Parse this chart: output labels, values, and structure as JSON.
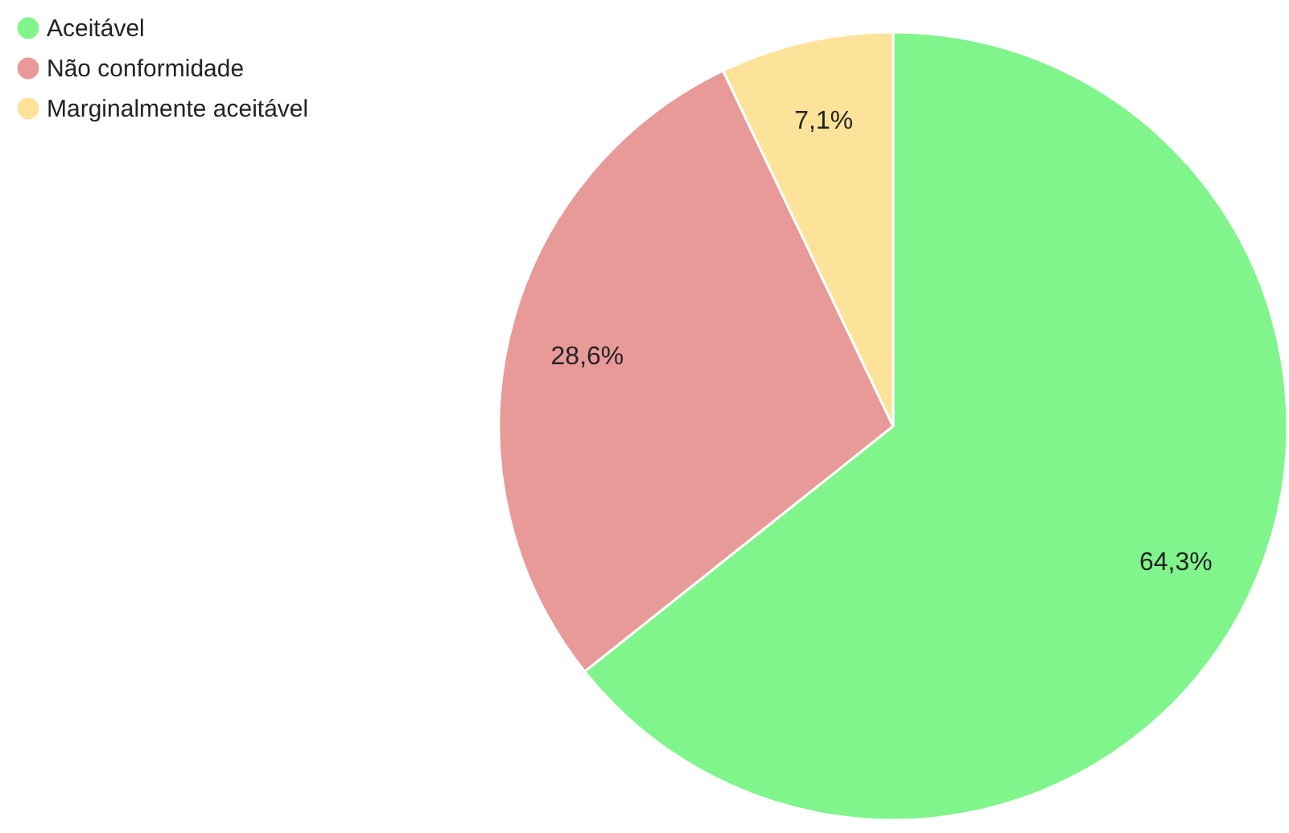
{
  "chart_data": {
    "type": "pie",
    "categories": [
      "Aceitável",
      "Não conformidade",
      "Marginalmente aceitável"
    ],
    "values": [
      64.3,
      28.6,
      7.1
    ],
    "colors": [
      "#80f58c",
      "#e89a99",
      "#fde39a"
    ],
    "value_labels": [
      "64,3%",
      "28,6%",
      "7,1%"
    ],
    "legend": "top left"
  }
}
